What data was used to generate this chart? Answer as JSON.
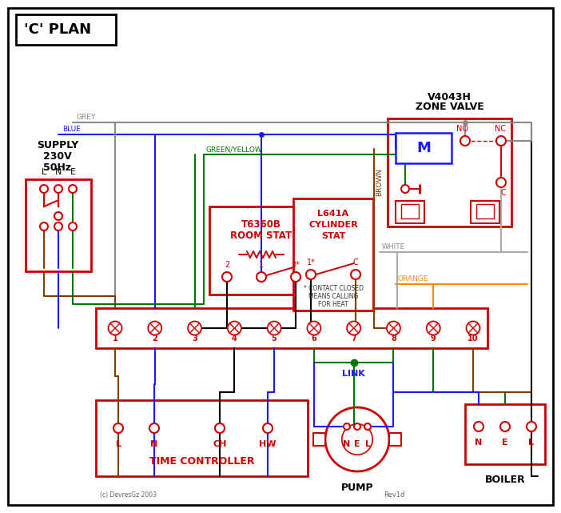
{
  "title": "'C' PLAN",
  "red": "#cc0000",
  "blue": "#1a1aff",
  "green": "#007700",
  "grey": "#888888",
  "brown": "#7B3F00",
  "orange": "#FF8C00",
  "white_wire": "#aaaaaa",
  "black_wire": "#000000",
  "zone_valve_title_1": "V4043H",
  "zone_valve_title_2": "ZONE VALVE",
  "room_stat_title_1": "T6360B",
  "room_stat_title_2": "ROOM STAT",
  "cyl_stat_title_1": "L641A",
  "cyl_stat_title_2": "CYLINDER",
  "cyl_stat_title_3": "STAT",
  "supply_line1": "SUPPLY",
  "supply_line2": "230V",
  "supply_line3": "50Hz",
  "supply_lne_l": "L",
  "supply_lne_n": "N",
  "supply_lne_e": "E",
  "tc_label": "TIME CONTROLLER",
  "pump_label": "PUMP",
  "boiler_label": "BOILER",
  "link_label": "LINK",
  "footnote_1": "* CONTACT CLOSED",
  "footnote_2": "MEANS CALLING",
  "footnote_3": "FOR HEAT",
  "copyright": "(c) DevresGz 2003",
  "revision": "Rev1d",
  "lbl_grey": "GREY",
  "lbl_blue": "BLUE",
  "lbl_gy": "GREEN/YELLOW",
  "lbl_brown": "BROWN",
  "lbl_white": "WHITE",
  "lbl_orange": "ORANGE"
}
